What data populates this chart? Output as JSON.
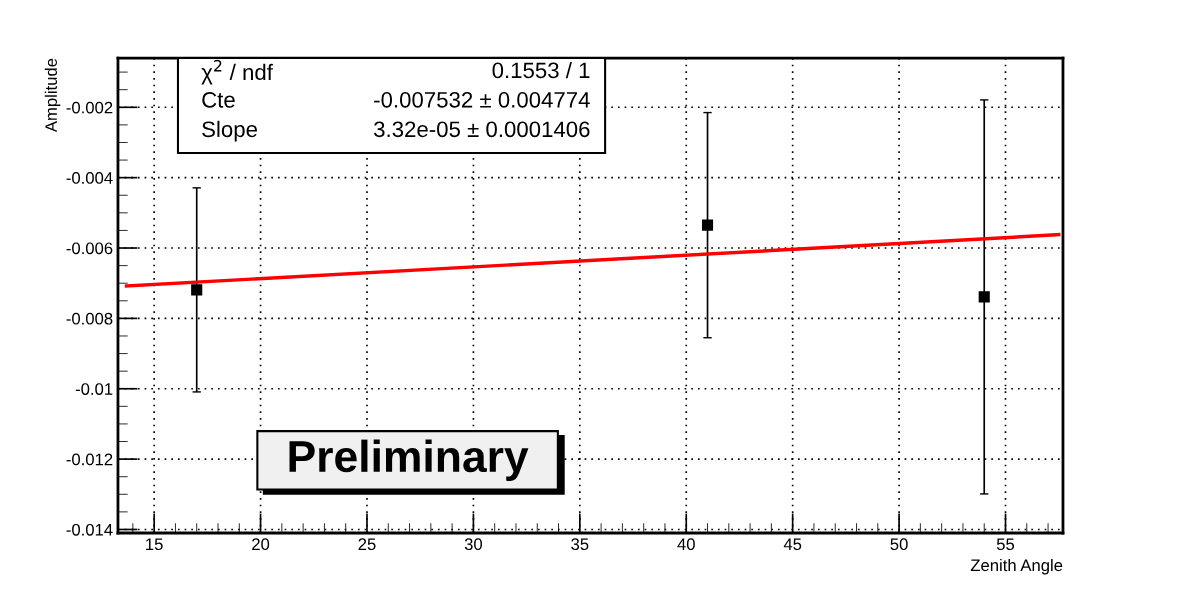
{
  "chart_data": {
    "type": "scatter",
    "xlabel": "Zenith Angle",
    "ylabel": "Amplitude",
    "xlim": [
      13.3,
      57.7
    ],
    "ylim": [
      -0.0141,
      -0.0006
    ],
    "xticks": [
      15,
      20,
      25,
      30,
      35,
      40,
      45,
      50,
      55
    ],
    "yticks": [
      -0.014,
      -0.012,
      -0.01,
      -0.008,
      -0.006,
      -0.004,
      -0.002
    ],
    "grid": true,
    "legend": false,
    "series": [
      {
        "marker": "square",
        "color": "#000000",
        "x": [
          17,
          41,
          54
        ],
        "values": [
          -0.00719,
          -0.00535,
          -0.00739
        ],
        "errors": [
          0.0029,
          0.0032,
          0.0056
        ]
      },
      {
        "type": "line",
        "color": "#ff0000",
        "x": [
          13.7,
          57.5
        ],
        "values": [
          -0.00708,
          -0.00562
        ]
      }
    ],
    "annotations": [
      "χ$^{2}$ / ndf",
      "0.1553 / 1",
      "Cte",
      "-0.007532 ± 0.004774",
      "Slope",
      "3.32e-05 ± 0.0001406",
      "Preliminary"
    ]
  }
}
